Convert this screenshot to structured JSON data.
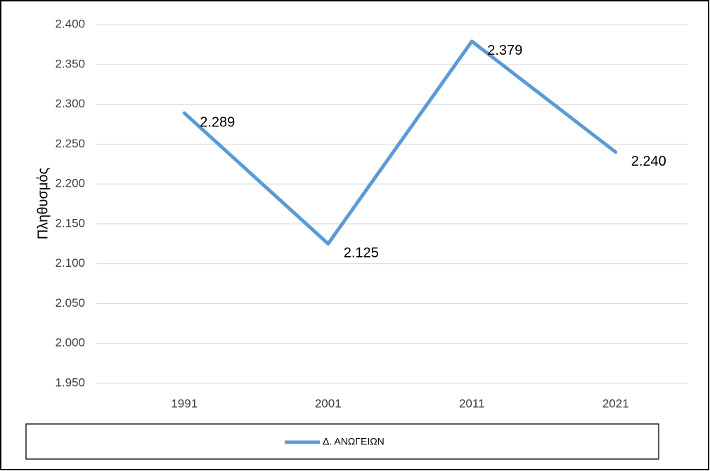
{
  "chart_data": {
    "type": "line",
    "y_label": "Πληθυσμός",
    "categories": [
      "1991",
      "2001",
      "2011",
      "2021"
    ],
    "series": [
      {
        "name": "Δ. ΑΝΩΓΕΙΩΝ",
        "color": "#5b9bd5",
        "values": [
          2289,
          2125,
          2379,
          2240
        ],
        "value_labels": [
          "2.289",
          "2.125",
          "2.379",
          "2.240"
        ]
      }
    ],
    "ylim": [
      1950,
      2400
    ],
    "yticks": [
      {
        "value": 1950,
        "label": "1.950"
      },
      {
        "value": 2000,
        "label": "2.000"
      },
      {
        "value": 2050,
        "label": "2.050"
      },
      {
        "value": 2100,
        "label": "2.100"
      },
      {
        "value": 2150,
        "label": "2.150"
      },
      {
        "value": 2200,
        "label": "2.200"
      },
      {
        "value": 2250,
        "label": "2.250"
      },
      {
        "value": 2300,
        "label": "2.300"
      },
      {
        "value": 2350,
        "label": "2.350"
      },
      {
        "value": 2400,
        "label": "2.400"
      }
    ],
    "grid": true,
    "legend": "bottom"
  }
}
